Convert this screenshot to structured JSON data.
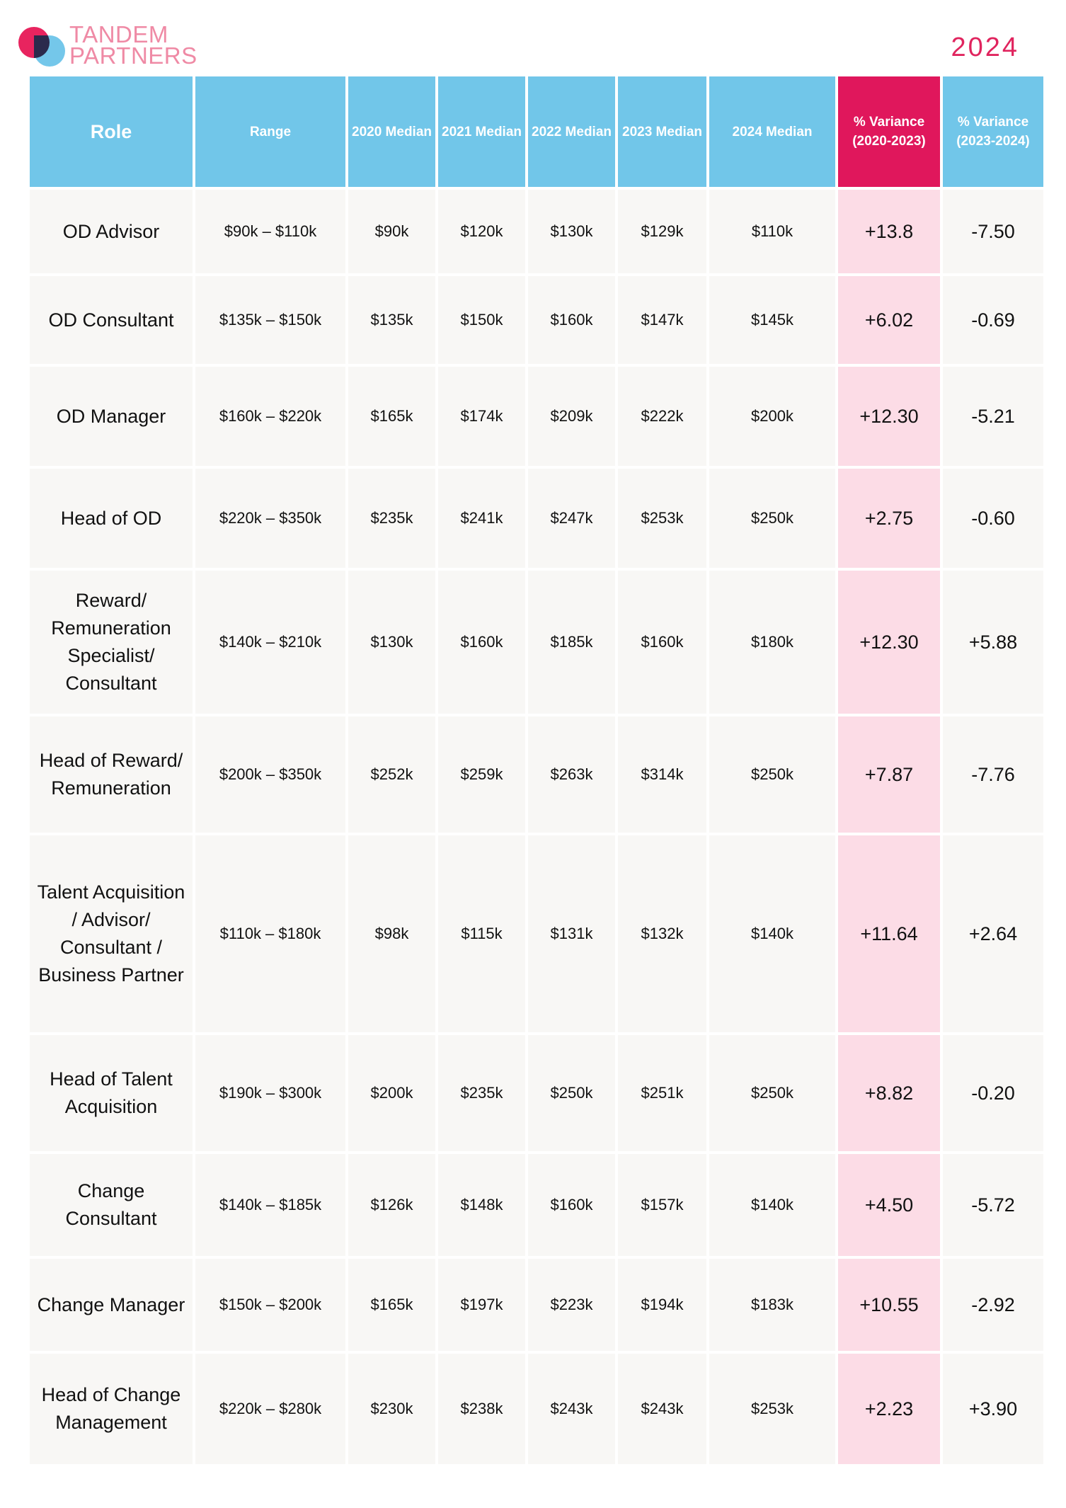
{
  "brand": {
    "line1": "TANDEM",
    "line2": "PARTNERS"
  },
  "year": "2024",
  "headers": {
    "role": "Role",
    "range": "Range",
    "m2020": "2020 Median",
    "m2021": "2021 Median",
    "m2022": "2022 Median",
    "m2023": "2023 Median",
    "m2024": "2024 Median",
    "var1": "% Variance (2020-2023)",
    "var2": "% Variance (2023-2024)"
  },
  "colors": {
    "header_blue": "#71c6e9",
    "accent_pink": "#e0175c",
    "pink_cell": "#fcdce6",
    "cell_bg": "#f8f7f5"
  },
  "rows": [
    {
      "role": "OD Advisor",
      "range": "$90k – $110k",
      "m2020": "$90k",
      "m2021": "$120k",
      "m2022": "$130k",
      "m2023": "$129k",
      "m2024": "$110k",
      "var1": "+13.8",
      "var2": "-7.50"
    },
    {
      "role": "OD Consultant",
      "range": "$135k – $150k",
      "m2020": "$135k",
      "m2021": "$150k",
      "m2022": "$160k",
      "m2023": "$147k",
      "m2024": "$145k",
      "var1": "+6.02",
      "var2": "-0.69"
    },
    {
      "role": "OD Manager",
      "range": "$160k – $220k",
      "m2020": "$165k",
      "m2021": "$174k",
      "m2022": "$209k",
      "m2023": "$222k",
      "m2024": "$200k",
      "var1": "+12.30",
      "var2": "-5.21"
    },
    {
      "role": "Head of OD",
      "range": "$220k – $350k",
      "m2020": "$235k",
      "m2021": "$241k",
      "m2022": "$247k",
      "m2023": "$253k",
      "m2024": "$250k",
      "var1": "+2.75",
      "var2": "-0.60"
    },
    {
      "role": "Reward/ Remuneration Specialist/ Consultant",
      "range": "$140k – $210k",
      "m2020": "$130k",
      "m2021": "$160k",
      "m2022": "$185k",
      "m2023": "$160k",
      "m2024": "$180k",
      "var1": "+12.30",
      "var2": "+5.88"
    },
    {
      "role": "Head of Reward/ Remuneration",
      "range": "$200k – $350k",
      "m2020": "$252k",
      "m2021": "$259k",
      "m2022": "$263k",
      "m2023": "$314k",
      "m2024": "$250k",
      "var1": "+7.87",
      "var2": "-7.76"
    },
    {
      "role": "Talent Acquisition / Advisor/ Consultant / Business Partner",
      "range": "$110k – $180k",
      "m2020": "$98k",
      "m2021": "$115k",
      "m2022": "$131k",
      "m2023": "$132k",
      "m2024": "$140k",
      "var1": "+11.64",
      "var2": "+2.64"
    },
    {
      "role": "Head of Talent Acquisition",
      "range": "$190k – $300k",
      "m2020": "$200k",
      "m2021": "$235k",
      "m2022": "$250k",
      "m2023": "$251k",
      "m2024": "$250k",
      "var1": "+8.82",
      "var2": "-0.20"
    },
    {
      "role": "Change Consultant",
      "range": "$140k – $185k",
      "m2020": "$126k",
      "m2021": "$148k",
      "m2022": "$160k",
      "m2023": "$157k",
      "m2024": "$140k",
      "var1": "+4.50",
      "var2": "-5.72"
    },
    {
      "role": "Change Manager",
      "range": "$150k – $200k",
      "m2020": "$165k",
      "m2021": "$197k",
      "m2022": "$223k",
      "m2023": "$194k",
      "m2024": "$183k",
      "var1": "+10.55",
      "var2": "-2.92"
    },
    {
      "role": "Head of Change Management",
      "range": "$220k – $280k",
      "m2020": "$230k",
      "m2021": "$238k",
      "m2022": "$243k",
      "m2023": "$243k",
      "m2024": "$253k",
      "var1": "+2.23",
      "var2": "+3.90"
    }
  ]
}
